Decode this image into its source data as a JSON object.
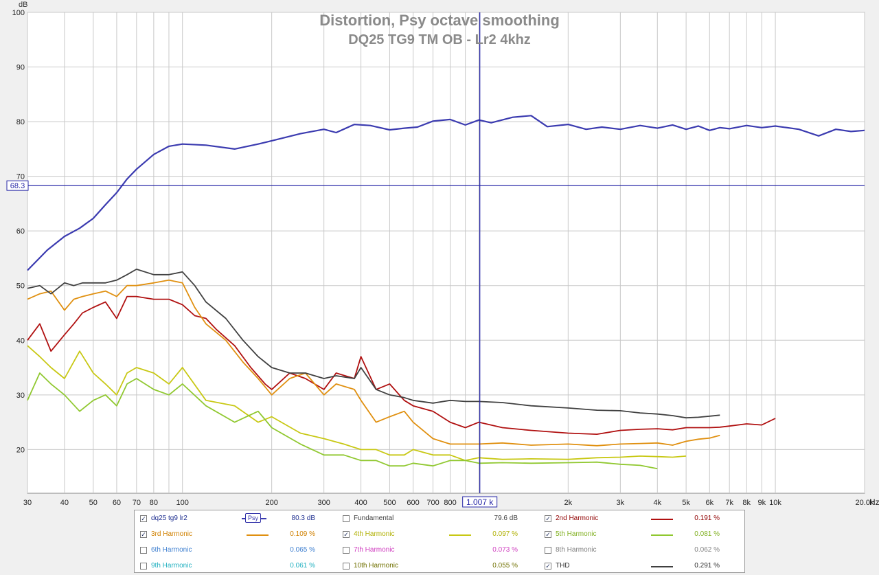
{
  "chart_data": {
    "type": "line",
    "title": "Distortion, Psy octave smoothing",
    "subtitle": "DQ25 TG9 TM OB - Lr2 4khz",
    "ylabel": "dB",
    "xlabel": "Hz",
    "xscale": "log",
    "xlim": [
      30,
      20000
    ],
    "ylim": [
      12,
      100
    ],
    "grid": true,
    "y_ticks": [
      "100",
      "90",
      "80",
      "70",
      "60",
      "50",
      "40",
      "30",
      "20"
    ],
    "x_ticks": [
      "30",
      "40",
      "50",
      "60",
      "70",
      "80",
      "100",
      "200",
      "300",
      "400",
      "500",
      "600",
      "700",
      "800",
      "2k",
      "3k",
      "4k",
      "5k",
      "6k",
      "7k",
      "8k",
      "9k",
      "10k",
      "20.0k"
    ],
    "cursor": {
      "x": 1007,
      "y": 68.3,
      "x_label": "1.007 k",
      "y_label": "68.3"
    },
    "series": [
      {
        "name": "dq25 tg9 lr2",
        "color": "#3b3bb0",
        "x": [
          30,
          35,
          40,
          45,
          50,
          55,
          60,
          65,
          70,
          80,
          90,
          100,
          120,
          150,
          180,
          200,
          250,
          300,
          330,
          380,
          430,
          500,
          560,
          620,
          700,
          800,
          900,
          1000,
          1100,
          1300,
          1500,
          1700,
          2000,
          2300,
          2600,
          3000,
          3500,
          4000,
          4500,
          5000,
          5500,
          6000,
          6500,
          7000,
          8000,
          9000,
          10000,
          12000,
          14000,
          16000,
          18000,
          20000
        ],
        "y": [
          52.8,
          56.5,
          59,
          60.5,
          62.3,
          64.8,
          67,
          69.5,
          71.3,
          74,
          75.5,
          75.9,
          75.7,
          75,
          75.9,
          76.5,
          77.8,
          78.6,
          78,
          79.5,
          79.3,
          78.5,
          78.8,
          79,
          80.1,
          80.4,
          79.4,
          80.3,
          79.8,
          80.8,
          81.1,
          79.1,
          79.5,
          78.6,
          79,
          78.6,
          79.3,
          78.8,
          79.4,
          78.6,
          79.2,
          78.4,
          78.9,
          78.7,
          79.3,
          78.9,
          79.2,
          78.6,
          77.4,
          78.6,
          78.2,
          78.4
        ]
      },
      {
        "name": "2nd Harmonic",
        "color": "#b01010",
        "value": "0.191 %",
        "x": [
          30,
          33,
          36,
          40,
          43,
          46,
          50,
          55,
          60,
          65,
          70,
          80,
          90,
          100,
          110,
          120,
          130,
          150,
          170,
          190,
          200,
          230,
          260,
          300,
          330,
          380,
          400,
          450,
          500,
          560,
          600,
          700,
          800,
          900,
          1000,
          1200,
          1500,
          2000,
          2500,
          3000,
          3500,
          4000,
          4500,
          5000,
          5500,
          6000,
          6500,
          7000,
          8000,
          9000,
          10000
        ],
        "y": [
          40,
          43,
          38,
          41,
          43,
          45,
          46,
          47,
          44,
          48,
          48,
          47.5,
          47.5,
          46.5,
          44.5,
          44,
          42,
          39,
          35,
          32,
          31,
          34,
          33,
          31,
          34,
          33,
          37,
          31,
          32,
          29,
          28,
          27,
          25,
          24,
          25,
          24,
          23.5,
          23,
          22.8,
          23.5,
          23.7,
          23.8,
          23.6,
          24,
          24,
          24,
          24.1,
          24.3,
          24.7,
          24.5,
          25.7
        ]
      },
      {
        "name": "3rd Harmonic",
        "color": "#e09010",
        "value": "0.109 %",
        "x": [
          30,
          33,
          36,
          40,
          43,
          46,
          50,
          55,
          60,
          65,
          70,
          80,
          90,
          100,
          110,
          120,
          140,
          160,
          180,
          200,
          230,
          260,
          300,
          330,
          380,
          400,
          450,
          500,
          560,
          600,
          700,
          800,
          900,
          1000,
          1200,
          1500,
          2000,
          2500,
          3000,
          3500,
          4000,
          4500,
          5000,
          5500,
          6000,
          6500
        ],
        "y": [
          47.5,
          48.5,
          49,
          45.5,
          47.5,
          48,
          48.5,
          49,
          48,
          50,
          50,
          50.5,
          51,
          50.5,
          46,
          43,
          40,
          36,
          33,
          30,
          33,
          34,
          30,
          32,
          31,
          29,
          25,
          26,
          27,
          25,
          22,
          21,
          21,
          21,
          21.2,
          20.8,
          21,
          20.7,
          21,
          21.1,
          21.2,
          20.8,
          21.5,
          21.9,
          22.1,
          22.6
        ]
      },
      {
        "name": "4th Harmonic",
        "color": "#c8c814",
        "value": "0.097 %",
        "x": [
          30,
          33,
          36,
          40,
          45,
          50,
          55,
          60,
          65,
          70,
          80,
          90,
          100,
          120,
          150,
          180,
          200,
          250,
          300,
          350,
          400,
          450,
          500,
          560,
          600,
          700,
          800,
          900,
          1000,
          1200,
          1500,
          2000,
          2500,
          3000,
          3500,
          4000,
          4500,
          5000
        ],
        "y": [
          39,
          37,
          35,
          33,
          38,
          34,
          32,
          30,
          34,
          35,
          34,
          32,
          35,
          29,
          28,
          25,
          26,
          23,
          22,
          21,
          20,
          20,
          19,
          19,
          20,
          19,
          19,
          18,
          18.5,
          18.2,
          18.3,
          18.2,
          18.5,
          18.6,
          18.8,
          18.7,
          18.6,
          18.8
        ]
      },
      {
        "name": "5th Harmonic",
        "color": "#90c830",
        "value": "0.081 %",
        "x": [
          30,
          33,
          36,
          40,
          45,
          50,
          55,
          60,
          65,
          70,
          80,
          90,
          100,
          120,
          150,
          180,
          200,
          250,
          300,
          350,
          400,
          450,
          500,
          560,
          600,
          700,
          800,
          900,
          1000,
          1200,
          1500,
          2000,
          2500,
          3000,
          3500,
          4000
        ],
        "y": [
          29,
          34,
          32,
          30,
          27,
          29,
          30,
          28,
          32,
          33,
          31,
          30,
          32,
          28,
          25,
          27,
          24,
          21,
          19,
          19,
          18,
          18,
          17,
          17,
          17.5,
          17,
          18,
          18,
          17.5,
          17.6,
          17.5,
          17.6,
          17.7,
          17.3,
          17.1,
          16.5
        ]
      },
      {
        "name": "THD",
        "color": "#404040",
        "value": "0.291 %",
        "x": [
          30,
          33,
          36,
          40,
          43,
          46,
          50,
          55,
          60,
          65,
          70,
          80,
          90,
          100,
          110,
          120,
          140,
          160,
          180,
          200,
          230,
          260,
          300,
          330,
          380,
          400,
          450,
          500,
          560,
          600,
          700,
          800,
          900,
          1000,
          1200,
          1500,
          2000,
          2500,
          3000,
          3500,
          4000,
          4500,
          5000,
          5500,
          6000,
          6500
        ],
        "y": [
          49.5,
          50,
          48.5,
          50.5,
          50,
          50.5,
          50.5,
          50.5,
          51,
          52,
          53,
          52,
          52,
          52.5,
          50,
          47,
          44,
          40,
          37,
          35,
          34,
          34,
          33,
          33.5,
          33,
          35,
          31,
          30,
          29.5,
          29,
          28.5,
          29,
          28.8,
          28.8,
          28.6,
          28,
          27.6,
          27.2,
          27.1,
          26.7,
          26.5,
          26.2,
          25.8,
          25.9,
          26.1,
          26.3
        ]
      }
    ]
  },
  "legend": {
    "rows": [
      [
        {
          "checked": true,
          "label": "dq25 tg9 lr2",
          "color": "#203090",
          "swatch": "#3b3bb0",
          "psy": "Psy",
          "value": "80.3 dB",
          "value_color": "#203090"
        },
        {
          "checked": false,
          "label": "Fundamental",
          "color": "#404040",
          "swatch": null,
          "value": "79.6 dB",
          "value_color": "#404040"
        },
        {
          "checked": true,
          "label": "2nd Harmonic",
          "color": "#900000",
          "swatch": "#b01010",
          "value": "0.191 %",
          "value_color": "#900000"
        }
      ],
      [
        {
          "checked": true,
          "label": "3rd Harmonic",
          "color": "#d08000",
          "swatch": "#e09010",
          "value": "0.109 %",
          "value_color": "#d08000"
        },
        {
          "checked": true,
          "label": "4th Harmonic",
          "color": "#b0b000",
          "swatch": "#c8c814",
          "value": "0.097 %",
          "value_color": "#b0b000"
        },
        {
          "checked": true,
          "label": "5th Harmonic",
          "color": "#80b020",
          "swatch": "#90c830",
          "value": "0.081 %",
          "value_color": "#80b020"
        }
      ],
      [
        {
          "checked": false,
          "label": "6th Harmonic",
          "color": "#4080d0",
          "swatch": null,
          "value": "0.065 %",
          "value_color": "#4080d0"
        },
        {
          "checked": false,
          "label": "7th Harmonic",
          "color": "#d040c0",
          "swatch": null,
          "value": "0.073 %",
          "value_color": "#d040c0"
        },
        {
          "checked": false,
          "label": "8th Harmonic",
          "color": "#808080",
          "swatch": null,
          "value": "0.062 %",
          "value_color": "#808080"
        }
      ],
      [
        {
          "checked": false,
          "label": "9th Harmonic",
          "color": "#20b0c0",
          "swatch": null,
          "value": "0.061 %",
          "value_color": "#20b0c0"
        },
        {
          "checked": false,
          "label": "10th Harmonic",
          "color": "#707000",
          "swatch": null,
          "value": "0.055 %",
          "value_color": "#707000"
        },
        {
          "checked": true,
          "label": "THD",
          "color": "#303030",
          "swatch": "#404040",
          "value": "0.291 %",
          "value_color": "#303030"
        }
      ]
    ]
  }
}
